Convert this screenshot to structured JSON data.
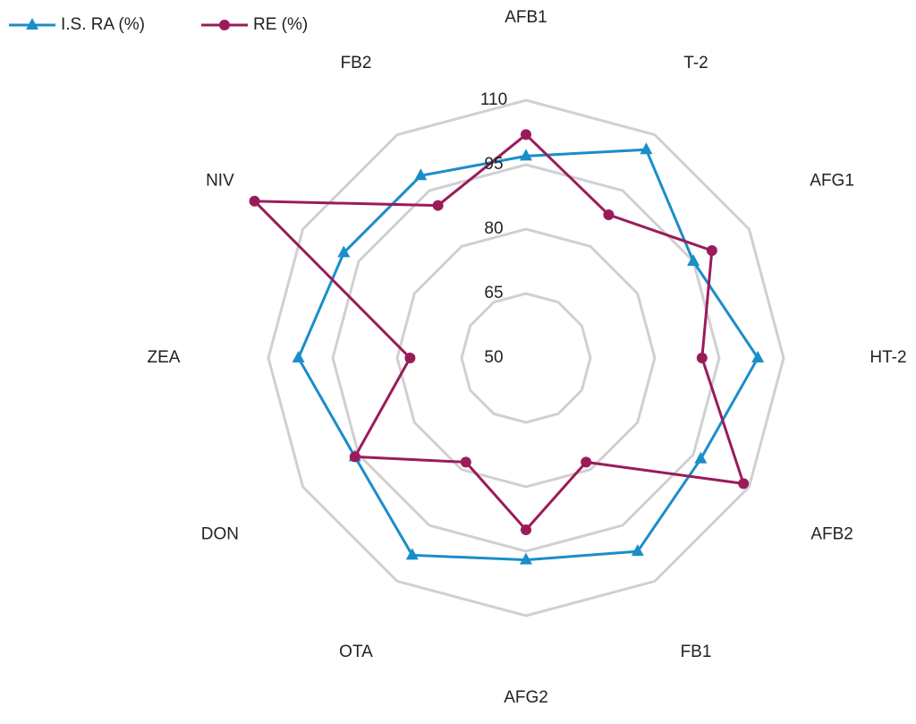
{
  "chart_data": {
    "type": "radar",
    "categories": [
      "AFB1",
      "T-2",
      "AFG1",
      "HT-2",
      "AFB2",
      "FB1",
      "AFG2",
      "OTA",
      "DON",
      "ZEA",
      "NIV",
      "FB2"
    ],
    "ylim": [
      50,
      110
    ],
    "yticks": [
      50,
      65,
      80,
      95,
      110
    ],
    "grid": true,
    "series": [
      {
        "name": "I.S. RA (%)",
        "color": "#1a8ec9",
        "marker": "triangle",
        "values": [
          97,
          106,
          95,
          104,
          97,
          102,
          97,
          103,
          96,
          103,
          99,
          99
        ]
      },
      {
        "name": "RE (%)",
        "color": "#9b1b5a",
        "marker": "circle",
        "values": [
          102,
          88.5,
          100,
          91,
          108.5,
          78,
          90,
          78,
          96,
          77,
          123,
          91
        ]
      }
    ]
  }
}
